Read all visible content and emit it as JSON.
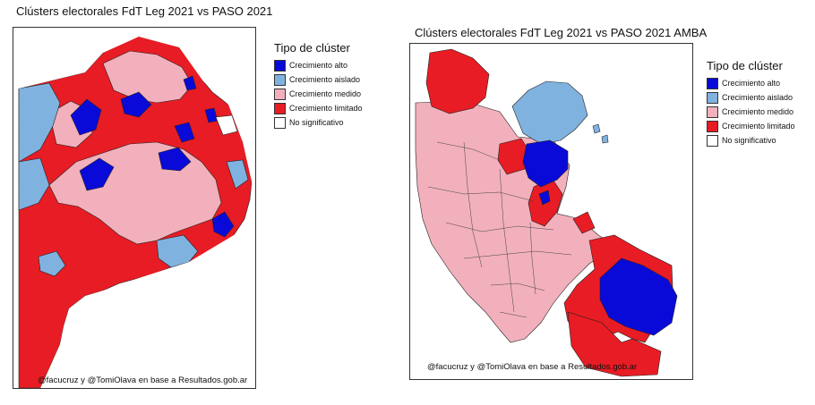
{
  "colors": {
    "alto": "#0a0ad8",
    "aislado": "#80b2e0",
    "medido": "#f2b0bc",
    "limitado": "#e81c24",
    "nosig": "#ffffff"
  },
  "left_map": {
    "title": "Clústers electorales FdT Leg 2021 vs PASO 2021",
    "credit": "@facucruz y @TomiOlava en base a Resultados.gob.ar",
    "legend": {
      "title": "Tipo de clúster",
      "items": [
        {
          "label": "Crecimiento alto",
          "color_key": "alto"
        },
        {
          "label": "Crecimiento aislado",
          "color_key": "aislado"
        },
        {
          "label": "Crecimiento medido",
          "color_key": "medido"
        },
        {
          "label": "Crecimiento limitado",
          "color_key": "limitado"
        },
        {
          "label": "No significativo",
          "color_key": "nosig"
        }
      ]
    }
  },
  "right_map": {
    "title": "Clústers electorales FdT Leg 2021 vs PASO 2021 AMBA",
    "credit": "@facucruz y @TomiOlava en base a Resultados.gob.ar",
    "legend": {
      "title": "Tipo de clúster",
      "items": [
        {
          "label": "Crecimiento alto",
          "color_key": "alto"
        },
        {
          "label": "Crecimiento aislado",
          "color_key": "aislado"
        },
        {
          "label": "Crecimiento medido",
          "color_key": "medido"
        },
        {
          "label": "Crecimiento limitado",
          "color_key": "limitado"
        },
        {
          "label": "No significativo",
          "color_key": "nosig"
        }
      ]
    }
  }
}
